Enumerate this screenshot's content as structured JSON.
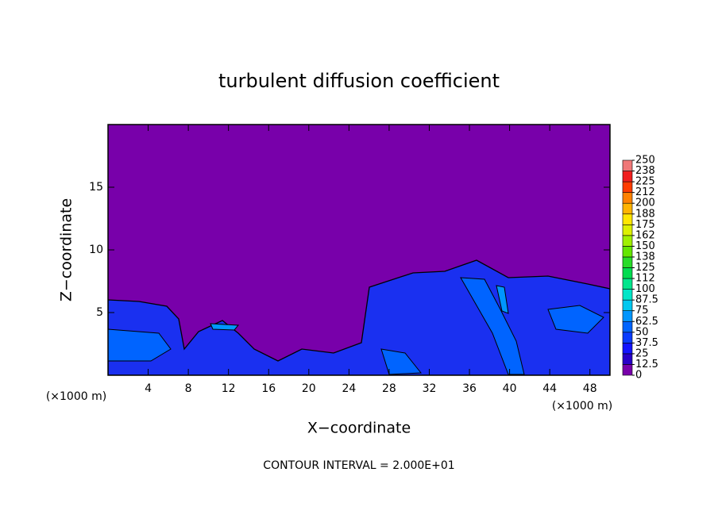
{
  "chart_data": {
    "type": "contour",
    "title": "turbulent diffusion coefficient",
    "x_label": "X−coordinate",
    "y_label": "Z−coordinate",
    "x_unit": "(×1000 m)",
    "x_unit_right": "(×1000 m)",
    "footer": "CONTOUR INTERVAL = 2.000E+01",
    "xlim": [
      0,
      50
    ],
    "xticks": [
      4,
      8,
      12,
      16,
      20,
      24,
      28,
      32,
      36,
      40,
      44,
      48
    ],
    "ylim": [
      0,
      20
    ],
    "yticks": [
      5,
      10,
      15
    ],
    "colorbar": {
      "ticks": [
        0,
        12.5,
        25,
        37.5,
        50,
        62.5,
        75,
        87.5,
        100,
        {
          "value": 112.5,
          "label": "112"
        },
        125,
        {
          "value": 137.5,
          "label": "138"
        },
        150,
        {
          "value": 162.5,
          "label": "162"
        },
        175,
        {
          "value": 187.5,
          "label": "188"
        },
        200,
        {
          "value": 212.5,
          "label": "212"
        },
        225,
        {
          "value": 237.5,
          "label": "238"
        },
        250
      ],
      "colors": [
        "#7800aa",
        "#2800c8",
        "#1414ff",
        "#0a3cff",
        "#0064ff",
        "#0096ff",
        "#00c8f0",
        "#00e6c8",
        "#00e68c",
        "#00dc50",
        "#28dc28",
        "#64e600",
        "#a0f000",
        "#dcf000",
        "#ffe600",
        "#ffb400",
        "#ff8200",
        "#ff3c00",
        "#f01e1e",
        "#f07878"
      ]
    }
  }
}
